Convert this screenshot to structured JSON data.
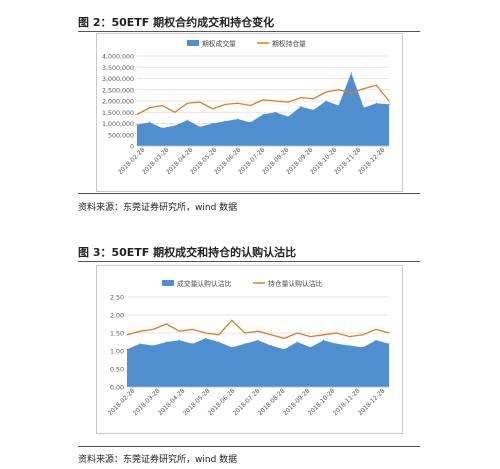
{
  "figure1": {
    "title": "图 2：50ETF 期权合约成交和持仓变化",
    "source": "资料来源：东莞证券研究所，wind 数据",
    "chart_data": {
      "type": "area",
      "title": "",
      "legend_position": "top",
      "grid": true,
      "ylim": [
        0,
        4000000
      ],
      "y_ticks": [
        "0",
        "500,000",
        "1,000,000",
        "1,500,000",
        "2,000,000",
        "2,500,000",
        "3,000,000",
        "3,500,000",
        "4,000,000"
      ],
      "x_ticks": [
        "2018-02-28",
        "2018-03-28",
        "2018-04-28",
        "2018-05-28",
        "2018-06-28",
        "2018-07-28",
        "2018-08-28",
        "2018-09-28",
        "2018-10-28",
        "2018-11-28",
        "2018-12-28"
      ],
      "x": [
        0,
        0.05,
        0.1,
        0.15,
        0.2,
        0.25,
        0.3,
        0.35,
        0.4,
        0.45,
        0.5,
        0.55,
        0.6,
        0.65,
        0.7,
        0.75,
        0.8,
        0.85,
        0.9,
        0.95,
        1
      ],
      "series": [
        {
          "name": "期权成交量",
          "type": "area",
          "color": "#4f8fd0",
          "values": [
            950000,
            1050000,
            800000,
            900000,
            1150000,
            850000,
            1000000,
            1100000,
            1200000,
            1050000,
            1400000,
            1500000,
            1300000,
            1750000,
            1600000,
            2000000,
            1800000,
            3250000,
            1700000,
            1900000,
            1850000
          ]
        },
        {
          "name": "期权持仓量",
          "type": "line",
          "color": "#e07c1e",
          "values": [
            1400000,
            1700000,
            1800000,
            1500000,
            1900000,
            1950000,
            1650000,
            1850000,
            1900000,
            1800000,
            2050000,
            2000000,
            1950000,
            2150000,
            2100000,
            2400000,
            2500000,
            2350000,
            2550000,
            2700000,
            2000000
          ]
        }
      ]
    }
  },
  "figure2": {
    "title": "图 3：50ETF 期权成交和持仓的认购认沽比",
    "source": "资料来源：东莞证券研究所，wind 数据",
    "chart_data": {
      "type": "area",
      "title": "",
      "legend_position": "top",
      "grid": true,
      "ylim": [
        0,
        2.5
      ],
      "y_ticks": [
        "0.00",
        "0.50",
        "1.00",
        "1.50",
        "2.00",
        "2.50"
      ],
      "x_ticks": [
        "2018-02-28",
        "2018-03-28",
        "2018-04-28",
        "2018-05-28",
        "2018-06-28",
        "2018-07-28",
        "2018-08-28",
        "2018-09-28",
        "2018-10-28",
        "2018-11-28",
        "2018-12-28"
      ],
      "x": [
        0,
        0.05,
        0.1,
        0.15,
        0.2,
        0.25,
        0.3,
        0.35,
        0.4,
        0.45,
        0.5,
        0.55,
        0.6,
        0.65,
        0.7,
        0.75,
        0.8,
        0.85,
        0.9,
        0.95,
        1
      ],
      "series": [
        {
          "name": "成交量认购认沽比",
          "type": "area",
          "color": "#4f8fd0",
          "values": [
            1.05,
            1.2,
            1.15,
            1.25,
            1.3,
            1.2,
            1.35,
            1.25,
            1.1,
            1.2,
            1.3,
            1.15,
            1.05,
            1.25,
            1.1,
            1.3,
            1.2,
            1.15,
            1.1,
            1.3,
            1.2
          ]
        },
        {
          "name": "持仓量认购认沽比",
          "type": "line",
          "color": "#e07c1e",
          "values": [
            1.45,
            1.55,
            1.6,
            1.75,
            1.55,
            1.6,
            1.5,
            1.45,
            1.85,
            1.5,
            1.55,
            1.45,
            1.35,
            1.5,
            1.4,
            1.45,
            1.5,
            1.4,
            1.45,
            1.6,
            1.5
          ]
        }
      ]
    }
  }
}
